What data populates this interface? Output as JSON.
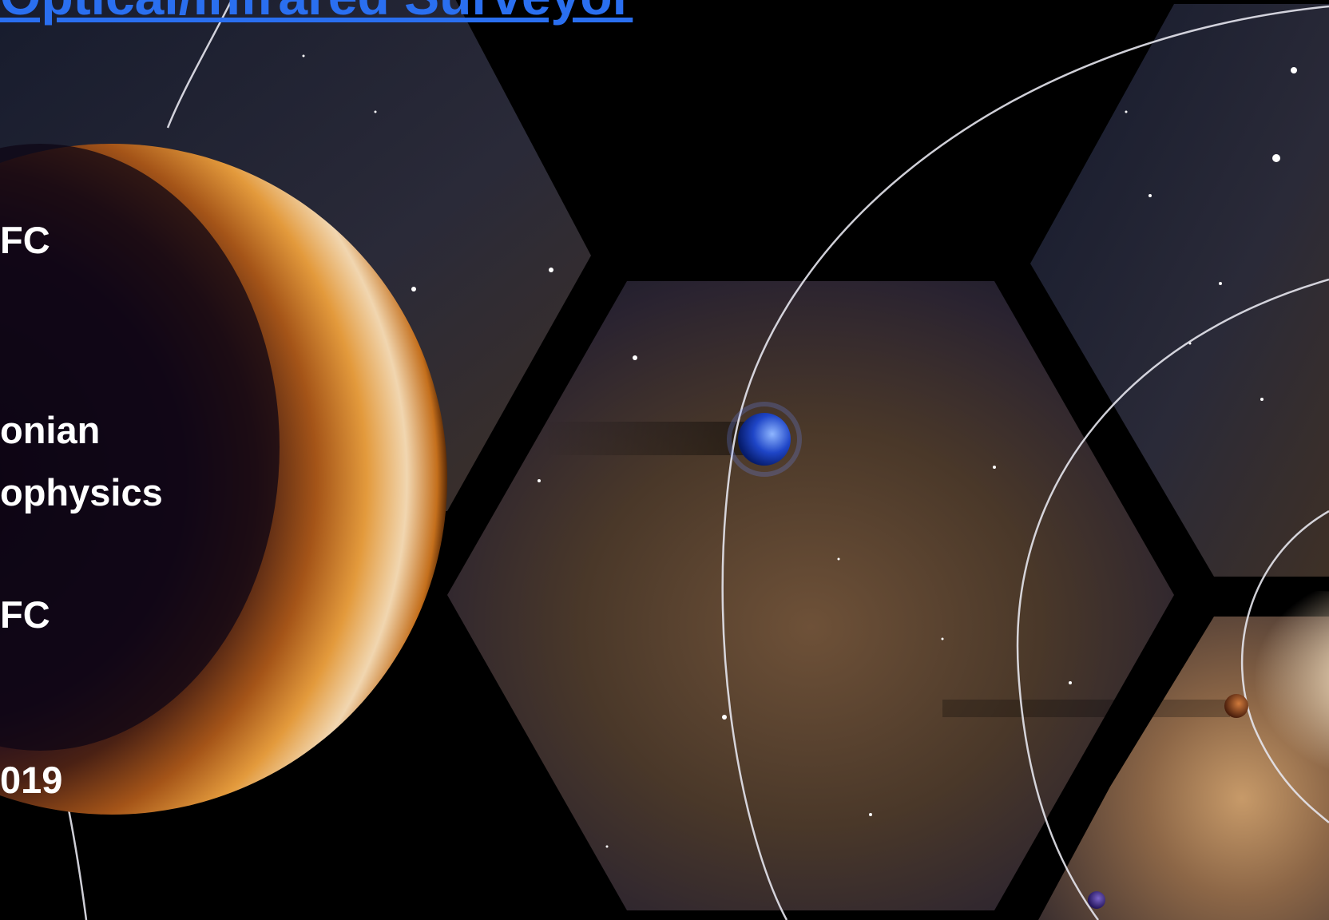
{
  "title": "Optical/Infrared Surveyor",
  "text_fragments": {
    "f1": "FC",
    "f2": "onian",
    "f3": "ophysics",
    "f4": "FC",
    "f5": "019"
  },
  "colors": {
    "title": "#2a6ff0",
    "text": "#ffffff",
    "background": "#000000"
  },
  "imagery": {
    "hexagon_count": 5,
    "planets": [
      "orange-gas-giant",
      "blue-planet",
      "small-brown-planet",
      "small-purple-planet"
    ],
    "orbit_count": 6
  }
}
